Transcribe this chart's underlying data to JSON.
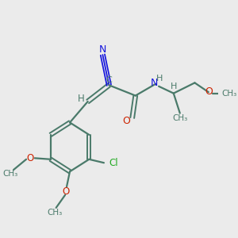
{
  "bg_color": "#ebebeb",
  "bond_color": "#4a7a6a",
  "n_color": "#1515dd",
  "o_color": "#cc2200",
  "cl_color": "#22aa22",
  "figsize": [
    3.0,
    3.0
  ],
  "dpi": 100,
  "xlim": [
    0,
    10
  ],
  "ylim": [
    0,
    10
  ]
}
